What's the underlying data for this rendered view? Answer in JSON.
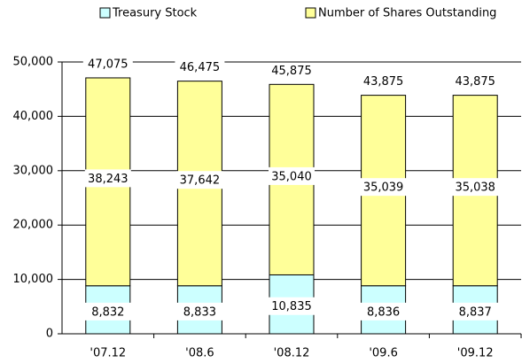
{
  "chart_data": {
    "type": "stacked_bar",
    "categories": [
      "'07.12",
      "'08.6",
      "'08.12",
      "'09.6",
      "'09.12"
    ],
    "series": [
      {
        "name": "Treasury Stock",
        "color": "#ccffff",
        "values": [
          8832,
          8833,
          10835,
          8836,
          8837
        ],
        "value_labels": [
          "8,832",
          "8,833",
          "10,835",
          "8,836",
          "8,837"
        ]
      },
      {
        "name": "Number of Shares Outstanding",
        "color": "#ffff99",
        "values": [
          38243,
          37642,
          35040,
          35039,
          35038
        ],
        "value_labels": [
          "38,243",
          "37,642",
          "35,040",
          "35,039",
          "35,038"
        ]
      }
    ],
    "totals": [
      47075,
      46475,
      45875,
      43875,
      43875
    ],
    "totals_labels": [
      "47,075",
      "46,475",
      "45,875",
      "43,875",
      "43,875"
    ],
    "ylim": [
      0,
      50000
    ],
    "yticks": [
      {
        "value": 0,
        "label": "0"
      },
      {
        "value": 10000,
        "label": "10,000"
      },
      {
        "value": 20000,
        "label": "20,000"
      },
      {
        "value": 30000,
        "label": "30,000"
      },
      {
        "value": 40000,
        "label": "40,000"
      },
      {
        "value": 50000,
        "label": "50,000"
      }
    ],
    "grid": true,
    "legend": "top"
  }
}
